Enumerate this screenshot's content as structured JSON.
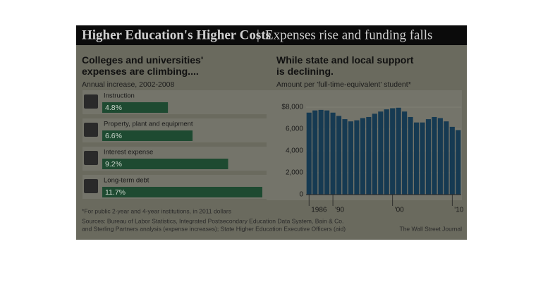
{
  "header": {
    "title": "Higher Education's Higher Costs",
    "subtitle": "Expenses rise and funding falls"
  },
  "chart_data": [
    {
      "type": "hbar",
      "title": "Colleges and universities' expenses are climbing....",
      "subtitle": "Annual increase, 2002-2008",
      "categories": [
        "Instruction",
        "Property, plant and equipment",
        "Interest expense",
        "Long-term debt"
      ],
      "values": [
        4.8,
        6.6,
        9.2,
        11.7
      ],
      "value_labels": [
        "4.8%",
        "6.6%",
        "9.2%",
        "11.7%"
      ],
      "color": "#1e4a31"
    },
    {
      "type": "bar",
      "title": "While state and local support is declining.",
      "subtitle": "Amount per 'full-time-equivalent' student*",
      "categories": [
        "1986",
        null,
        null,
        null,
        "'90",
        null,
        null,
        null,
        null,
        null,
        null,
        null,
        null,
        null,
        "'00",
        null,
        null,
        null,
        null,
        null,
        null,
        null,
        null,
        null,
        "'10",
        null
      ],
      "values": [
        7500,
        7700,
        7750,
        7700,
        7500,
        7200,
        6900,
        6700,
        6800,
        7000,
        7100,
        7400,
        7600,
        7800,
        7900,
        7950,
        7600,
        7100,
        6600,
        6600,
        6900,
        7100,
        7000,
        6700,
        6200,
        5900
      ],
      "color": "#163a52",
      "ylim": [
        0,
        8000
      ],
      "yticks": [
        0,
        {
          "value": 2000,
          "label": "2,000"
        },
        {
          "value": 4000,
          "label": "4,000"
        },
        {
          "value": 6000,
          "label": "6,000"
        },
        {
          "value": 8000,
          "label": "$8,000"
        }
      ]
    }
  ],
  "footnote": "*For public 2-year and 4-year institutions, in 2011 dollars",
  "sources": [
    "Sources: Bureau of Labor Statistics, Integrated Postsecondary Education Data System, Bain & Co.",
    "and Sterling Partners analysis (expense increases); State Higher Education Executive Officers (aid)"
  ],
  "credit": "The Wall Street Journal"
}
